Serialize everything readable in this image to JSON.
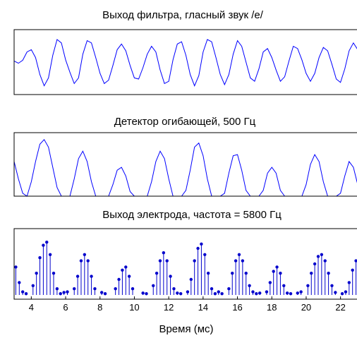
{
  "chart_data": [
    {
      "type": "line",
      "title": "Выход фильтра, гласный звук /е/",
      "xlim": [
        3,
        23
      ],
      "ylim": [
        -1.25,
        1.25
      ],
      "series": [
        {
          "color": "#0000ff",
          "x": [
            3.0,
            3.25,
            3.5,
            3.75,
            4.0,
            4.25,
            4.5,
            4.75,
            5.0,
            5.25,
            5.5,
            5.75,
            6.0,
            6.25,
            6.5,
            6.75,
            7.0,
            7.25,
            7.5,
            7.75,
            8.0,
            8.25,
            8.5,
            8.75,
            9.0,
            9.25,
            9.5,
            9.75,
            10.0,
            10.25,
            10.5,
            10.75,
            11.0,
            11.25,
            11.5,
            11.75,
            12.0,
            12.25,
            12.5,
            12.75,
            13.0,
            13.25,
            13.5,
            13.75,
            14.0,
            14.25,
            14.5,
            14.75,
            15.0,
            15.25,
            15.5,
            15.75,
            16.0,
            16.25,
            16.5,
            16.75,
            17.0,
            17.25,
            17.5,
            17.75,
            18.0,
            18.25,
            18.5,
            18.75,
            19.0,
            19.25,
            19.5,
            19.75,
            20.0,
            20.25,
            20.5,
            20.75,
            21.0,
            21.25,
            21.5,
            21.75,
            22.0,
            22.25,
            22.5,
            22.75,
            23.0
          ],
          "y": [
            0.05,
            -0.05,
            0.08,
            0.45,
            0.55,
            0.2,
            -0.55,
            -1.05,
            -0.7,
            0.3,
            1.0,
            0.85,
            0.1,
            -0.45,
            -0.95,
            -0.7,
            0.35,
            0.95,
            0.85,
            0.2,
            -0.5,
            -0.95,
            -0.8,
            -0.15,
            0.55,
            0.8,
            0.5,
            -0.15,
            -0.7,
            -0.75,
            -0.25,
            0.35,
            0.7,
            0.45,
            -0.35,
            -0.95,
            -0.85,
            0.1,
            0.8,
            0.9,
            0.3,
            -0.55,
            -1.05,
            -0.6,
            0.45,
            1.0,
            0.9,
            0.2,
            -0.55,
            -1.0,
            -0.55,
            0.35,
            0.95,
            0.7,
            0.0,
            -0.7,
            -0.85,
            -0.3,
            0.45,
            0.6,
            0.2,
            -0.35,
            -0.85,
            -0.65,
            0.05,
            0.7,
            0.6,
            0.1,
            -0.5,
            -0.85,
            -0.5,
            0.2,
            0.65,
            0.5,
            -0.1,
            -0.75,
            -0.9,
            -0.3,
            0.5,
            0.85,
            0.55
          ]
        }
      ]
    },
    {
      "type": "line",
      "title": "Детектор огибающей, 500 Гц",
      "xlim": [
        3,
        23
      ],
      "ylim": [
        0,
        1.1
      ],
      "series": [
        {
          "color": "#0000ff",
          "x": [
            3.0,
            3.25,
            3.5,
            3.75,
            4.0,
            4.25,
            4.5,
            4.75,
            5.0,
            5.25,
            5.5,
            5.75,
            6.0,
            6.25,
            6.5,
            6.75,
            7.0,
            7.25,
            7.5,
            7.75,
            8.0,
            8.25,
            8.5,
            8.75,
            9.0,
            9.25,
            9.5,
            9.75,
            10.0,
            10.25,
            10.5,
            10.75,
            11.0,
            11.25,
            11.5,
            11.75,
            12.0,
            12.25,
            12.5,
            12.75,
            13.0,
            13.25,
            13.5,
            13.75,
            14.0,
            14.25,
            14.5,
            14.75,
            15.0,
            15.25,
            15.5,
            15.75,
            16.0,
            16.25,
            16.5,
            16.75,
            17.0,
            17.25,
            17.5,
            17.75,
            18.0,
            18.25,
            18.5,
            18.75,
            19.0,
            19.25,
            19.5,
            19.75,
            20.0,
            20.25,
            20.5,
            20.75,
            21.0,
            21.25,
            21.5,
            21.75,
            22.0,
            22.25,
            22.5,
            22.75,
            23.0
          ],
          "y": [
            0.6,
            0.3,
            0.05,
            0.0,
            0.25,
            0.6,
            0.9,
            0.98,
            0.85,
            0.5,
            0.15,
            0.0,
            0.0,
            0.0,
            0.3,
            0.65,
            0.78,
            0.6,
            0.25,
            0.0,
            0.0,
            0.0,
            0.0,
            0.2,
            0.45,
            0.5,
            0.35,
            0.08,
            0.0,
            0.0,
            0.0,
            0.0,
            0.25,
            0.6,
            0.78,
            0.65,
            0.3,
            0.0,
            0.0,
            0.0,
            0.1,
            0.45,
            0.85,
            0.92,
            0.7,
            0.3,
            0.0,
            0.0,
            0.0,
            0.05,
            0.4,
            0.7,
            0.72,
            0.45,
            0.1,
            0.0,
            0.0,
            0.0,
            0.1,
            0.4,
            0.5,
            0.4,
            0.1,
            0.0,
            0.0,
            0.0,
            0.0,
            0.0,
            0.2,
            0.55,
            0.72,
            0.6,
            0.25,
            0.0,
            0.0,
            0.0,
            0.05,
            0.35,
            0.6,
            0.5,
            0.2
          ]
        }
      ]
    },
    {
      "type": "scatter",
      "subtype": "stem",
      "title": "Выход электрода, частота = 5800 Гц",
      "xlabel": "Время (мс)",
      "xlim": [
        3,
        23
      ],
      "ylim": [
        0,
        1.0
      ],
      "xticks": [
        4,
        6,
        8,
        10,
        12,
        14,
        16,
        18,
        20,
        22
      ],
      "xtick_labels": [
        "4",
        "6",
        "8",
        "10",
        "12",
        "14",
        "16",
        "18",
        "20",
        "22"
      ],
      "series": [
        {
          "color": "#0000cc",
          "x": [
            3.1,
            3.3,
            3.5,
            3.7,
            4.1,
            4.3,
            4.5,
            4.7,
            4.9,
            5.1,
            5.3,
            5.5,
            5.7,
            5.9,
            6.1,
            6.5,
            6.7,
            6.9,
            7.1,
            7.3,
            7.5,
            7.7,
            8.1,
            8.3,
            8.9,
            9.1,
            9.3,
            9.5,
            9.7,
            9.9,
            10.5,
            10.7,
            11.1,
            11.3,
            11.5,
            11.7,
            11.9,
            12.1,
            12.3,
            12.5,
            12.7,
            13.1,
            13.3,
            13.5,
            13.7,
            13.9,
            14.1,
            14.3,
            14.5,
            14.7,
            14.9,
            15.1,
            15.5,
            15.7,
            15.9,
            16.1,
            16.3,
            16.5,
            16.7,
            16.9,
            17.1,
            17.3,
            17.7,
            17.9,
            18.1,
            18.3,
            18.5,
            18.7,
            18.9,
            19.1,
            19.5,
            19.7,
            20.1,
            20.3,
            20.5,
            20.7,
            20.9,
            21.1,
            21.3,
            21.5,
            21.7,
            22.1,
            22.3,
            22.5,
            22.7,
            22.9
          ],
          "y": [
            0.45,
            0.2,
            0.05,
            0.02,
            0.15,
            0.35,
            0.6,
            0.8,
            0.85,
            0.65,
            0.35,
            0.1,
            0.02,
            0.04,
            0.05,
            0.1,
            0.3,
            0.55,
            0.65,
            0.55,
            0.3,
            0.1,
            0.04,
            0.02,
            0.1,
            0.25,
            0.4,
            0.45,
            0.3,
            0.1,
            0.03,
            0.02,
            0.15,
            0.35,
            0.55,
            0.68,
            0.55,
            0.3,
            0.1,
            0.03,
            0.02,
            0.05,
            0.25,
            0.55,
            0.75,
            0.82,
            0.65,
            0.35,
            0.1,
            0.02,
            0.05,
            0.02,
            0.1,
            0.35,
            0.55,
            0.65,
            0.55,
            0.35,
            0.15,
            0.05,
            0.02,
            0.03,
            0.05,
            0.2,
            0.38,
            0.45,
            0.35,
            0.15,
            0.03,
            0.02,
            0.03,
            0.05,
            0.15,
            0.35,
            0.5,
            0.62,
            0.65,
            0.55,
            0.35,
            0.15,
            0.04,
            0.02,
            0.05,
            0.2,
            0.4,
            0.55
          ]
        }
      ]
    }
  ]
}
